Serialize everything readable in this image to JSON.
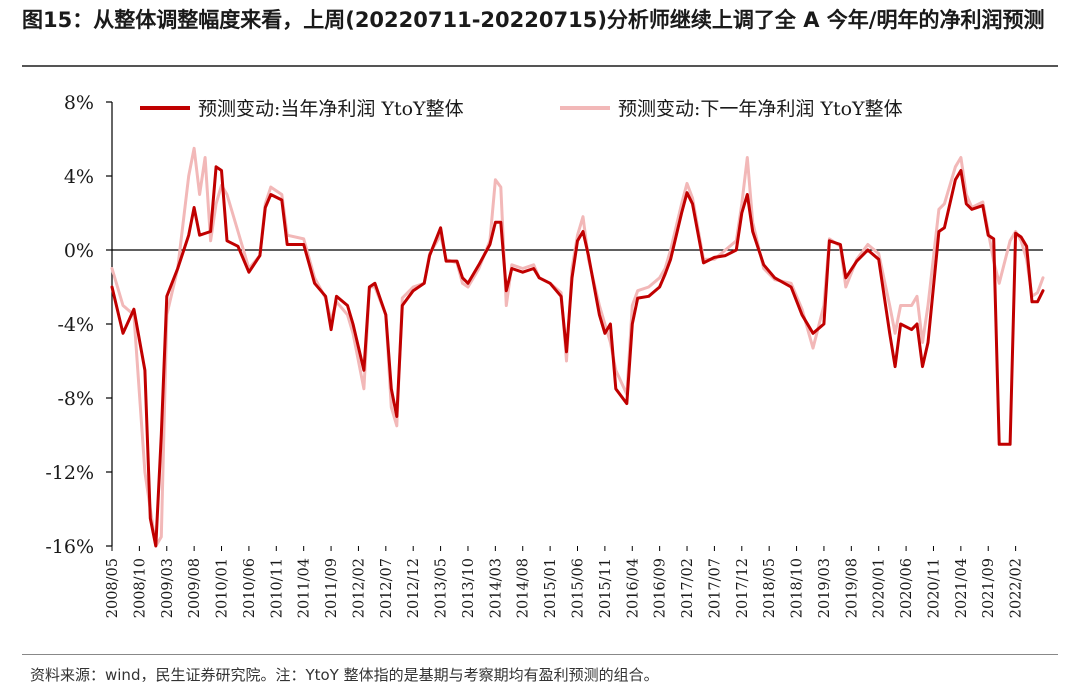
{
  "title": "图15：从整体调整幅度来看，上周(20220711-20220715)分析师继续上调了全 A 今年/明年的净利润预测",
  "source": "资料来源：wind，民生证券研究院。注：YtoY 整体指的是基期与考察期均有盈利预测的组合。",
  "colors": {
    "series1": "#c00000",
    "series2": "#f2b8b8",
    "axis": "#000000"
  },
  "chart_data": {
    "type": "line",
    "xlabel": "",
    "ylabel": "",
    "ylim": [
      -16,
      8
    ],
    "yticks": [
      8,
      4,
      0,
      -4,
      -8,
      -12,
      -16
    ],
    "ytick_labels": [
      "8%",
      "4%",
      "0%",
      "-4%",
      "-8%",
      "-12%",
      "-16%"
    ],
    "x_start": "2008/05",
    "x_end": "2022/07",
    "xtick_labels": [
      "2008/05",
      "2008/10",
      "2009/03",
      "2009/08",
      "2010/01",
      "2010/06",
      "2010/11",
      "2011/04",
      "2011/09",
      "2012/02",
      "2012/07",
      "2012/12",
      "2013/05",
      "2013/10",
      "2014/03",
      "2014/08",
      "2015/01",
      "2015/06",
      "2015/11",
      "2016/04",
      "2016/09",
      "2017/02",
      "2017/07",
      "2017/12",
      "2018/05",
      "2018/10",
      "2019/03",
      "2019/08",
      "2020/01",
      "2020/06",
      "2020/11",
      "2021/04",
      "2021/09",
      "2022/02"
    ],
    "legend_position": "top",
    "grid": false,
    "series": [
      {
        "name": "预测变动:当年净利润 YtoY整体",
        "points": [
          [
            "2008/05",
            -2.0
          ],
          [
            "2008/07",
            -4.5
          ],
          [
            "2008/09",
            -3.2
          ],
          [
            "2008/11",
            -6.5
          ],
          [
            "2008/12",
            -14.5
          ],
          [
            "2009/01",
            -16.0
          ],
          [
            "2009/02",
            -10.0
          ],
          [
            "2009/03",
            -2.5
          ],
          [
            "2009/05",
            -1.0
          ],
          [
            "2009/07",
            0.8
          ],
          [
            "2009/08",
            2.3
          ],
          [
            "2009/09",
            0.8
          ],
          [
            "2009/11",
            1.0
          ],
          [
            "2009/12",
            4.5
          ],
          [
            "2010/01",
            4.3
          ],
          [
            "2010/02",
            0.5
          ],
          [
            "2010/04",
            0.2
          ],
          [
            "2010/06",
            -1.2
          ],
          [
            "2010/08",
            -0.3
          ],
          [
            "2010/09",
            2.3
          ],
          [
            "2010/10",
            3.0
          ],
          [
            "2010/12",
            2.7
          ],
          [
            "2011/01",
            0.3
          ],
          [
            "2011/04",
            0.3
          ],
          [
            "2011/06",
            -1.8
          ],
          [
            "2011/08",
            -2.5
          ],
          [
            "2011/09",
            -4.3
          ],
          [
            "2011/10",
            -2.5
          ],
          [
            "2011/12",
            -3.0
          ],
          [
            "2012/01",
            -4.0
          ],
          [
            "2012/03",
            -6.5
          ],
          [
            "2012/04",
            -2.0
          ],
          [
            "2012/05",
            -1.8
          ],
          [
            "2012/07",
            -3.5
          ],
          [
            "2012/08",
            -7.5
          ],
          [
            "2012/09",
            -9.0
          ],
          [
            "2012/10",
            -3.0
          ],
          [
            "2012/12",
            -2.2
          ],
          [
            "2013/02",
            -1.8
          ],
          [
            "2013/03",
            -0.3
          ],
          [
            "2013/05",
            1.2
          ],
          [
            "2013/06",
            -0.6
          ],
          [
            "2013/08",
            -0.6
          ],
          [
            "2013/09",
            -1.5
          ],
          [
            "2013/10",
            -1.8
          ],
          [
            "2013/12",
            -0.8
          ],
          [
            "2014/02",
            0.3
          ],
          [
            "2014/03",
            1.5
          ],
          [
            "2014/04",
            1.5
          ],
          [
            "2014/05",
            -2.2
          ],
          [
            "2014/06",
            -1.0
          ],
          [
            "2014/08",
            -1.2
          ],
          [
            "2014/10",
            -1.0
          ],
          [
            "2014/11",
            -1.5
          ],
          [
            "2015/01",
            -1.8
          ],
          [
            "2015/03",
            -2.5
          ],
          [
            "2015/04",
            -5.5
          ],
          [
            "2015/05",
            -1.5
          ],
          [
            "2015/06",
            0.5
          ],
          [
            "2015/07",
            1.0
          ],
          [
            "2015/08",
            -0.3
          ],
          [
            "2015/10",
            -3.5
          ],
          [
            "2015/11",
            -4.5
          ],
          [
            "2015/12",
            -4.0
          ],
          [
            "2016/01",
            -7.5
          ],
          [
            "2016/03",
            -8.3
          ],
          [
            "2016/04",
            -4.0
          ],
          [
            "2016/05",
            -2.6
          ],
          [
            "2016/07",
            -2.5
          ],
          [
            "2016/09",
            -2.0
          ],
          [
            "2016/10",
            -1.3
          ],
          [
            "2016/11",
            -0.5
          ],
          [
            "2017/01",
            2.0
          ],
          [
            "2017/02",
            3.1
          ],
          [
            "2017/03",
            2.5
          ],
          [
            "2017/05",
            -0.7
          ],
          [
            "2017/07",
            -0.4
          ],
          [
            "2017/09",
            -0.3
          ],
          [
            "2017/11",
            0.0
          ],
          [
            "2017/12",
            2.0
          ],
          [
            "2018/01",
            3.0
          ],
          [
            "2018/02",
            1.0
          ],
          [
            "2018/04",
            -0.8
          ],
          [
            "2018/06",
            -1.5
          ],
          [
            "2018/09",
            -2.0
          ],
          [
            "2018/11",
            -3.5
          ],
          [
            "2019/01",
            -4.5
          ],
          [
            "2019/03",
            -4.0
          ],
          [
            "2019/04",
            0.5
          ],
          [
            "2019/06",
            0.3
          ],
          [
            "2019/07",
            -1.5
          ],
          [
            "2019/09",
            -0.6
          ],
          [
            "2019/11",
            0.0
          ],
          [
            "2020/01",
            -0.5
          ],
          [
            "2020/03",
            -4.5
          ],
          [
            "2020/04",
            -6.3
          ],
          [
            "2020/05",
            -4.0
          ],
          [
            "2020/07",
            -4.3
          ],
          [
            "2020/08",
            -4.0
          ],
          [
            "2020/09",
            -6.3
          ],
          [
            "2020/10",
            -5.0
          ],
          [
            "2020/12",
            1.0
          ],
          [
            "2021/01",
            1.2
          ],
          [
            "2021/03",
            3.8
          ],
          [
            "2021/04",
            4.3
          ],
          [
            "2021/05",
            2.5
          ],
          [
            "2021/06",
            2.2
          ],
          [
            "2021/08",
            2.4
          ],
          [
            "2021/09",
            0.8
          ],
          [
            "2021/10",
            0.6
          ],
          [
            "2021/11",
            -10.5
          ],
          [
            "2022/01",
            -10.5
          ],
          [
            "2022/02",
            0.9
          ],
          [
            "2022/03",
            0.7
          ],
          [
            "2022/04",
            0.2
          ],
          [
            "2022/05",
            -2.8
          ],
          [
            "2022/06",
            -2.8
          ],
          [
            "2022/07",
            -2.2
          ]
        ]
      },
      {
        "name": "预测变动:下一年净利润 YtoY整体",
        "points": [
          [
            "2008/05",
            -1.0
          ],
          [
            "2008/07",
            -3.0
          ],
          [
            "2008/09",
            -3.5
          ],
          [
            "2008/11",
            -12.0
          ],
          [
            "2008/12",
            -14.0
          ],
          [
            "2009/01",
            -16.0
          ],
          [
            "2009/02",
            -15.5
          ],
          [
            "2009/03",
            -3.5
          ],
          [
            "2009/05",
            -1.0
          ],
          [
            "2009/07",
            4.0
          ],
          [
            "2009/08",
            5.5
          ],
          [
            "2009/09",
            3.0
          ],
          [
            "2009/10",
            5.0
          ],
          [
            "2009/11",
            0.5
          ],
          [
            "2009/12",
            2.5
          ],
          [
            "2010/01",
            3.5
          ],
          [
            "2010/02",
            3.0
          ],
          [
            "2010/04",
            1.0
          ],
          [
            "2010/06",
            -1.0
          ],
          [
            "2010/08",
            -0.3
          ],
          [
            "2010/09",
            2.5
          ],
          [
            "2010/10",
            3.4
          ],
          [
            "2010/12",
            3.0
          ],
          [
            "2011/01",
            0.8
          ],
          [
            "2011/04",
            0.6
          ],
          [
            "2011/06",
            -1.5
          ],
          [
            "2011/08",
            -2.6
          ],
          [
            "2011/09",
            -3.8
          ],
          [
            "2011/10",
            -2.8
          ],
          [
            "2011/12",
            -3.5
          ],
          [
            "2012/01",
            -4.5
          ],
          [
            "2012/03",
            -7.5
          ],
          [
            "2012/04",
            -2.0
          ],
          [
            "2012/05",
            -2.0
          ],
          [
            "2012/07",
            -3.5
          ],
          [
            "2012/08",
            -8.5
          ],
          [
            "2012/09",
            -9.5
          ],
          [
            "2012/10",
            -2.6
          ],
          [
            "2012/12",
            -2.0
          ],
          [
            "2013/02",
            -1.8
          ],
          [
            "2013/03",
            -0.2
          ],
          [
            "2013/05",
            0.8
          ],
          [
            "2013/06",
            -0.5
          ],
          [
            "2013/08",
            -0.7
          ],
          [
            "2013/09",
            -1.8
          ],
          [
            "2013/10",
            -2.0
          ],
          [
            "2013/12",
            -1.0
          ],
          [
            "2014/02",
            0.5
          ],
          [
            "2014/03",
            3.8
          ],
          [
            "2014/04",
            3.4
          ],
          [
            "2014/05",
            -3.0
          ],
          [
            "2014/06",
            -0.8
          ],
          [
            "2014/08",
            -1.0
          ],
          [
            "2014/10",
            -0.8
          ],
          [
            "2014/11",
            -1.5
          ],
          [
            "2015/01",
            -1.8
          ],
          [
            "2015/03",
            -2.3
          ],
          [
            "2015/04",
            -6.0
          ],
          [
            "2015/05",
            -1.0
          ],
          [
            "2015/06",
            0.8
          ],
          [
            "2015/07",
            1.8
          ],
          [
            "2015/08",
            -0.5
          ],
          [
            "2015/10",
            -3.0
          ],
          [
            "2015/11",
            -4.0
          ],
          [
            "2015/12",
            -5.0
          ],
          [
            "2016/01",
            -6.5
          ],
          [
            "2016/03",
            -7.8
          ],
          [
            "2016/04",
            -3.0
          ],
          [
            "2016/05",
            -2.2
          ],
          [
            "2016/07",
            -2.0
          ],
          [
            "2016/09",
            -1.5
          ],
          [
            "2016/10",
            -1.0
          ],
          [
            "2016/11",
            0.0
          ],
          [
            "2017/01",
            2.5
          ],
          [
            "2017/02",
            3.6
          ],
          [
            "2017/03",
            2.8
          ],
          [
            "2017/05",
            -0.5
          ],
          [
            "2017/07",
            -0.5
          ],
          [
            "2017/09",
            0.0
          ],
          [
            "2017/11",
            0.5
          ],
          [
            "2017/12",
            2.5
          ],
          [
            "2018/01",
            5.0
          ],
          [
            "2018/02",
            1.5
          ],
          [
            "2018/04",
            -1.0
          ],
          [
            "2018/06",
            -1.6
          ],
          [
            "2018/09",
            -1.8
          ],
          [
            "2018/11",
            -3.2
          ],
          [
            "2019/01",
            -5.3
          ],
          [
            "2019/03",
            -3.0
          ],
          [
            "2019/04",
            0.6
          ],
          [
            "2019/06",
            0.2
          ],
          [
            "2019/07",
            -2.0
          ],
          [
            "2019/09",
            -0.5
          ],
          [
            "2019/11",
            0.3
          ],
          [
            "2020/01",
            -0.2
          ],
          [
            "2020/03",
            -3.0
          ],
          [
            "2020/04",
            -4.5
          ],
          [
            "2020/05",
            -3.0
          ],
          [
            "2020/07",
            -3.0
          ],
          [
            "2020/08",
            -2.5
          ],
          [
            "2020/09",
            -5.0
          ],
          [
            "2020/10",
            -3.0
          ],
          [
            "2020/12",
            2.2
          ],
          [
            "2021/01",
            2.5
          ],
          [
            "2021/03",
            4.5
          ],
          [
            "2021/04",
            5.0
          ],
          [
            "2021/05",
            3.0
          ],
          [
            "2021/06",
            2.3
          ],
          [
            "2021/08",
            2.6
          ],
          [
            "2021/09",
            1.0
          ],
          [
            "2021/10",
            -0.6
          ],
          [
            "2021/11",
            -1.8
          ],
          [
            "2022/01",
            0.5
          ],
          [
            "2022/02",
            1.0
          ],
          [
            "2022/03",
            0.5
          ],
          [
            "2022/04",
            -0.5
          ],
          [
            "2022/05",
            -2.5
          ],
          [
            "2022/06",
            -2.3
          ],
          [
            "2022/07",
            -1.5
          ]
        ]
      }
    ]
  }
}
